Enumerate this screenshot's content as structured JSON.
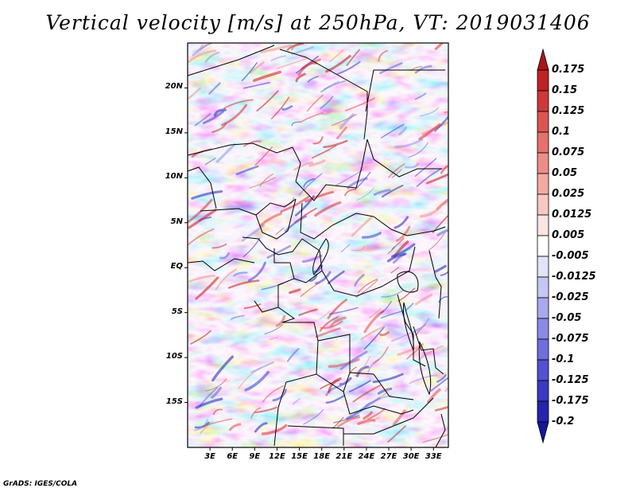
{
  "title": "Vertical velocity [m/s] at 250hPa, VT: 2019031406",
  "credit": "GrADS: IGES/COLA",
  "map": {
    "variable": "Vertical velocity",
    "units": "m/s",
    "level": "250hPa",
    "valid_time": "2019031406",
    "lat_range": [
      -20,
      25
    ],
    "lon_range": [
      0,
      35
    ],
    "lat_labels": [
      "20N",
      "15N",
      "10N",
      "5N",
      "EQ",
      "5S",
      "10S",
      "15S"
    ],
    "lat_values": [
      20,
      15,
      10,
      5,
      0,
      -5,
      -10,
      -15
    ],
    "lon_labels": [
      "3E",
      "6E",
      "9E",
      "12E",
      "15E",
      "18E",
      "21E",
      "24E",
      "27E",
      "30E",
      "33E"
    ],
    "lon_values": [
      3,
      6,
      9,
      12,
      15,
      18,
      21,
      24,
      27,
      30,
      33
    ]
  },
  "colorbar": {
    "labels": [
      "0.175",
      "0.15",
      "0.125",
      "0.1",
      "0.075",
      "0.05",
      "0.025",
      "0.0125",
      "0.005",
      "-0.005",
      "-0.0125",
      "-0.025",
      "-0.05",
      "-0.075",
      "-0.1",
      "-0.125",
      "-0.175",
      "-0.2"
    ],
    "colors": [
      "#a8161a",
      "#c12026",
      "#d0383a",
      "#dc5553",
      "#e4716c",
      "#ec8e87",
      "#f2aaa3",
      "#f7c8c2",
      "#fbe4e1",
      "#ffffff",
      "#e2e2fa",
      "#c6c6f4",
      "#a9a9ee",
      "#8b8be6",
      "#6e6ede",
      "#5151d2",
      "#3939c2",
      "#2424ac",
      "#16169a"
    ]
  }
}
